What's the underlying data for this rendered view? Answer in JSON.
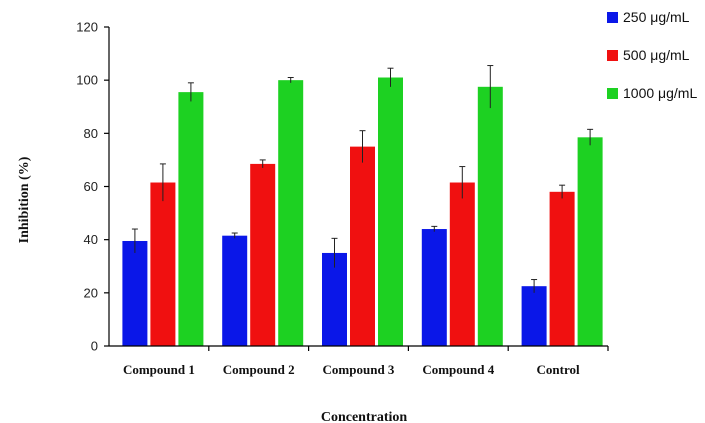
{
  "chart_data": {
    "type": "bar",
    "xlabel": "Concentration",
    "ylabel": "Inhibition  (%)",
    "ylim": [
      0,
      120
    ],
    "yticks": [
      0,
      20,
      40,
      60,
      80,
      100,
      120
    ],
    "categories": [
      "Compound 1",
      "Compound 2",
      "Compound 3",
      "Compound 4",
      "Control"
    ],
    "series": [
      {
        "name": "250 μg/mL",
        "color": "#0a17e8",
        "values": [
          39.5,
          41.5,
          35.0,
          44.0,
          22.5
        ],
        "errors": [
          4.5,
          1.0,
          5.5,
          1.0,
          2.5
        ]
      },
      {
        "name": "500 μg/mL",
        "color": "#f01010",
        "values": [
          61.5,
          68.5,
          75.0,
          61.5,
          58.0
        ],
        "errors": [
          7.0,
          1.5,
          6.0,
          6.0,
          2.5
        ]
      },
      {
        "name": "1000 μg/mL",
        "color": "#1dd122",
        "values": [
          95.5,
          100.0,
          101.0,
          97.5,
          78.5
        ],
        "errors": [
          3.5,
          1.0,
          3.5,
          8.0,
          3.0
        ]
      }
    ],
    "legend_position": "top-right",
    "grid": false
  }
}
